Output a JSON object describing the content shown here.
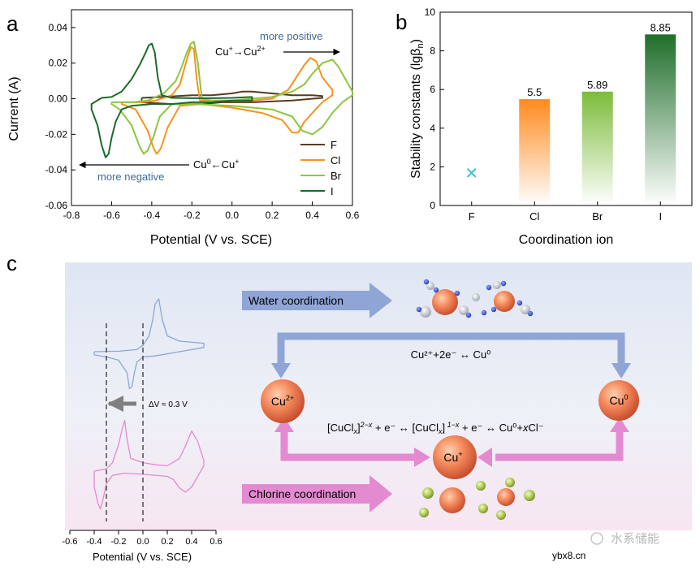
{
  "panels": {
    "a": "a",
    "b": "b",
    "c": "c"
  },
  "chart_data": [
    {
      "type": "line",
      "title": "",
      "xlabel": "Potential (V vs. SCE)",
      "ylabel": "Current (A)",
      "xlim": [
        -0.8,
        0.6
      ],
      "ylim": [
        -0.06,
        0.05
      ],
      "xticks": [
        "-0.8",
        "-0.6",
        "-0.4",
        "-0.2",
        "0.0",
        "0.2",
        "0.4",
        "0.6"
      ],
      "yticks": [
        "-0.06",
        "-0.04",
        "-0.02",
        "0.00",
        "0.02",
        "0.04"
      ],
      "series": [
        {
          "name": "F",
          "color": "#5b3a1e",
          "x": [
            -0.45,
            -0.35,
            -0.2,
            -0.1,
            0.0,
            0.05,
            0.1,
            0.2,
            0.3,
            0.4,
            0.45,
            0.45,
            0.3,
            0.1,
            -0.05,
            -0.15,
            -0.3,
            -0.45,
            -0.45
          ],
          "y": [
            0.0005,
            0.001,
            0.002,
            0.002,
            0.003,
            0.004,
            0.004,
            0.003,
            0.002,
            0.002,
            0.0015,
            0.0005,
            -0.001,
            -0.002,
            -0.002,
            -0.003,
            -0.003,
            -0.002,
            0.0005
          ]
        },
        {
          "name": "Cl",
          "color": "#f7931e",
          "x": [
            -0.55,
            -0.45,
            -0.38,
            -0.3,
            -0.26,
            -0.24,
            -0.22,
            -0.205,
            -0.19,
            -0.175,
            -0.16,
            -0.1,
            0.0,
            0.1,
            0.2,
            0.28,
            0.32,
            0.36,
            0.39,
            0.42,
            0.45,
            0.5,
            0.5,
            0.45,
            0.4,
            0.36,
            0.33,
            0.3,
            0.25,
            0.15,
            0.0,
            -0.15,
            -0.26,
            -0.32,
            -0.355,
            -0.375,
            -0.39,
            -0.42,
            -0.48,
            -0.55,
            -0.55
          ],
          "y": [
            -0.002,
            -0.002,
            -0.001,
            0.002,
            0.008,
            0.016,
            0.024,
            0.029,
            0.028,
            0.01,
            -0.001,
            -0.001,
            -0.001,
            -0.001,
            0.0,
            0.005,
            0.012,
            0.019,
            0.023,
            0.021,
            0.012,
            0.005,
            0.002,
            -0.002,
            -0.008,
            -0.013,
            -0.019,
            -0.019,
            -0.012,
            -0.008,
            -0.005,
            -0.003,
            -0.004,
            -0.016,
            -0.028,
            -0.031,
            -0.028,
            -0.018,
            -0.006,
            -0.003,
            -0.002
          ]
        },
        {
          "name": "Br",
          "color": "#8dc63f",
          "x": [
            -0.6,
            -0.5,
            -0.42,
            -0.34,
            -0.28,
            -0.25,
            -0.225,
            -0.205,
            -0.19,
            -0.17,
            -0.15,
            -0.1,
            0.0,
            0.1,
            0.2,
            0.3,
            0.36,
            0.4,
            0.45,
            0.5,
            0.53,
            0.57,
            0.6,
            0.6,
            0.55,
            0.5,
            0.45,
            0.4,
            0.35,
            0.3,
            0.2,
            0.0,
            -0.2,
            -0.3,
            -0.36,
            -0.39,
            -0.42,
            -0.44,
            -0.46,
            -0.5,
            -0.56,
            -0.6,
            -0.6
          ],
          "y": [
            -0.002,
            -0.002,
            -0.001,
            0.003,
            0.01,
            0.018,
            0.026,
            0.031,
            0.032,
            0.02,
            0.0,
            -0.001,
            -0.001,
            0.0,
            0.001,
            0.004,
            0.008,
            0.014,
            0.02,
            0.022,
            0.018,
            0.01,
            0.004,
            0.002,
            -0.002,
            -0.008,
            -0.016,
            -0.02,
            -0.018,
            -0.01,
            -0.006,
            -0.004,
            -0.003,
            -0.003,
            -0.01,
            -0.021,
            -0.029,
            -0.031,
            -0.027,
            -0.015,
            -0.006,
            -0.003,
            -0.002
          ]
        },
        {
          "name": "I",
          "color": "#1a6b2a",
          "x": [
            -0.65,
            -0.6,
            -0.55,
            -0.5,
            -0.46,
            -0.43,
            -0.415,
            -0.4,
            -0.385,
            -0.37,
            -0.35,
            -0.3,
            -0.2,
            -0.1,
            0.0,
            0.1,
            0.1,
            0.0,
            -0.1,
            -0.2,
            -0.3,
            -0.4,
            -0.5,
            -0.55,
            -0.58,
            -0.6,
            -0.615,
            -0.63,
            -0.65,
            -0.67,
            -0.7,
            -0.7,
            -0.65
          ],
          "y": [
            0.0005,
            0.001,
            0.004,
            0.011,
            0.019,
            0.026,
            0.03,
            0.031,
            0.026,
            0.012,
            0.002,
            0.0005,
            0.0003,
            0.0003,
            0.0005,
            0.001,
            -0.001,
            -0.001,
            -0.002,
            -0.002,
            -0.003,
            -0.003,
            -0.004,
            -0.006,
            -0.013,
            -0.022,
            -0.031,
            -0.033,
            -0.026,
            -0.015,
            -0.006,
            -0.003,
            0.0005
          ]
        }
      ],
      "annotations": {
        "positive_label": "more positive",
        "positive_reaction_base": "Cu",
        "positive_reaction_sup1": "+",
        "positive_reaction_mid": "→Cu",
        "positive_reaction_sup2": "2+",
        "negative_label": "more negative",
        "negative_reaction_base": "Cu",
        "negative_reaction_sup1": "0",
        "negative_reaction_mid": "←Cu",
        "negative_reaction_sup2": "+"
      }
    },
    {
      "type": "bar",
      "title": "",
      "xlabel": "Coordination ion",
      "ylabel": "Stability constants (lgβ",
      "ylabel_sub": "n",
      "ylabel_end": ")",
      "ylim": [
        0,
        10
      ],
      "yticks": [
        "0",
        "2",
        "4",
        "6",
        "8",
        "10"
      ],
      "categories": [
        "F",
        "Cl",
        "Br",
        "I"
      ],
      "values": [
        null,
        5.5,
        5.89,
        8.85
      ],
      "value_labels": [
        "",
        "5.5",
        "5.89",
        "8.85"
      ],
      "colors": [
        "#33c0c8",
        "#ff8a1e",
        "#7cbc3a",
        "#1f6e2a"
      ],
      "marker_F": {
        "symbol": "×",
        "value": 1.65
      }
    },
    {
      "type": "line",
      "title": "",
      "xlabel": "Potential (V vs. SCE)",
      "ylabel": "",
      "xlim": [
        -0.6,
        0.6
      ],
      "xticks": [
        "-0.6",
        "-0.4",
        "-0.2",
        "0.0",
        "0.2",
        "0.4",
        "0.6"
      ],
      "delta_label": "ΔV ≈ 0.3 V",
      "series": [
        {
          "name": "Water coordination CV",
          "color": "#8fa5d6",
          "x": [
            -0.4,
            -0.2,
            -0.05,
            0.0,
            0.05,
            0.08,
            0.1,
            0.13,
            0.16,
            0.2,
            0.3,
            0.5,
            0.5,
            0.3,
            0.2,
            0.1,
            0.0,
            -0.05,
            -0.07,
            -0.09,
            -0.11,
            -0.13,
            -0.2,
            -0.3,
            -0.4,
            -0.4
          ],
          "y": [
            0.0,
            0.005,
            0.02,
            0.06,
            0.15,
            0.3,
            0.45,
            0.5,
            0.3,
            0.15,
            0.1,
            0.08,
            0.04,
            0.0,
            -0.02,
            -0.04,
            -0.05,
            -0.1,
            -0.2,
            -0.33,
            -0.35,
            -0.2,
            -0.08,
            -0.05,
            -0.03,
            0.0
          ]
        },
        {
          "name": "Chlorine coordination CV",
          "color": "#e48ad0",
          "x": [
            -0.4,
            -0.3,
            -0.25,
            -0.2,
            -0.17,
            -0.15,
            -0.13,
            -0.1,
            0.0,
            0.1,
            0.2,
            0.3,
            0.35,
            0.4,
            0.45,
            0.5,
            0.5,
            0.45,
            0.4,
            0.35,
            0.3,
            0.25,
            0.2,
            0.0,
            -0.15,
            -0.25,
            -0.3,
            -0.33,
            -0.35,
            -0.37,
            -0.4,
            -0.4
          ],
          "y": [
            0.0,
            0.02,
            0.08,
            0.25,
            0.4,
            0.48,
            0.3,
            0.12,
            0.08,
            0.06,
            0.05,
            0.12,
            0.24,
            0.38,
            0.28,
            0.1,
            0.05,
            -0.05,
            -0.15,
            -0.2,
            -0.16,
            -0.08,
            -0.05,
            -0.03,
            -0.02,
            -0.04,
            -0.12,
            -0.28,
            -0.36,
            -0.3,
            -0.15,
            0.0
          ]
        }
      ]
    }
  ],
  "scheme": {
    "water_label": "Water coordination",
    "chlorine_label": "Chlorine coordination",
    "top_reaction": "Cu²⁺+2e⁻ ↔ Cu⁰",
    "middle_reaction_1": "[CuCl",
    "middle_reaction_x1": "x",
    "middle_reaction_2": "]",
    "middle_reaction_s1": "2−x",
    "middle_reaction_3": " + e⁻ ↔ [CuCl",
    "middle_reaction_x2": "x",
    "middle_reaction_4": "]",
    "middle_reaction_s2": " 1−x",
    "middle_reaction_5": " + e⁻ ↔ Cu⁰+",
    "middle_reaction_x3": "x",
    "middle_reaction_6": "Cl⁻",
    "node_cu2_base": "Cu",
    "node_cu2_sup": "2+",
    "node_cu0_base": "Cu",
    "node_cu0_sup": "0",
    "node_cu1_base": "Cu",
    "node_cu1_sup": "+"
  },
  "watermark": {
    "source": "ybx8.cn",
    "account": "水系储能"
  }
}
